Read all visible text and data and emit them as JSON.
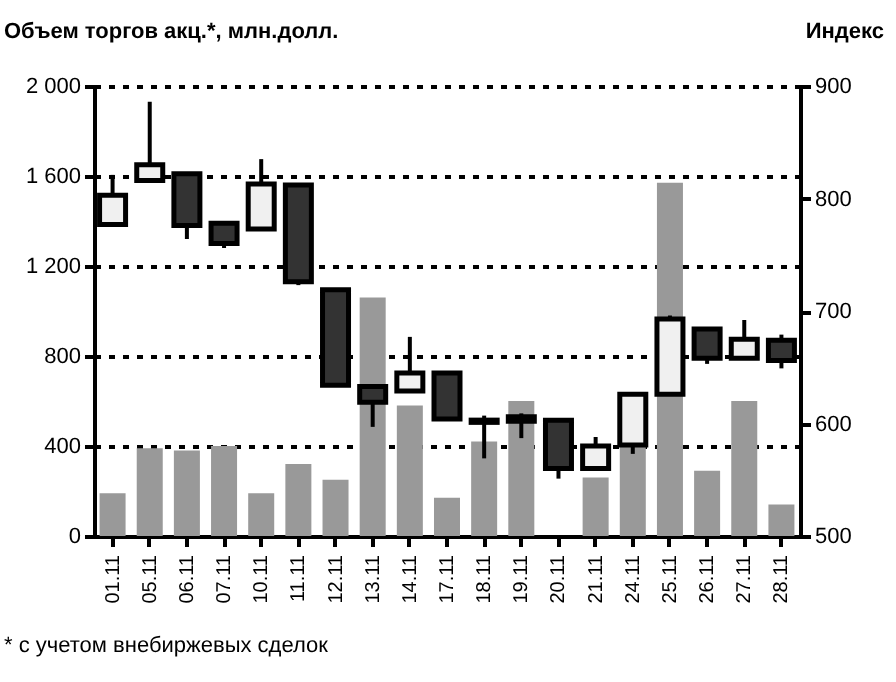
{
  "chart_data": {
    "type": "bar",
    "ylabel": "Объем торгов акц.*, млн.долл.",
    "y2label": "Индекс",
    "annotations": [
      "* с учетом внебиржевых сделок"
    ],
    "categories": [
      "01.11",
      "05.11",
      "06.11",
      "07.11",
      "10.11",
      "11.11",
      "12.11",
      "13.11",
      "14.11",
      "17.11",
      "18.11",
      "19.11",
      "20.11",
      "21.11",
      "24.11",
      "25.11",
      "26.11",
      "27.11",
      "28.11"
    ],
    "series": [
      {
        "color": "#999999",
        "values": [
          190,
          390,
          380,
          400,
          190,
          320,
          250,
          1060,
          580,
          170,
          420,
          600,
          null,
          260,
          400,
          1570,
          290,
          600,
          140
        ]
      },
      {
        "type": "candlestick",
        "axis": "y2",
        "colors": [
          "#f0f0f0",
          "#f0f0f0",
          "#333333",
          "#333333",
          "#f0f0f0",
          "#333333",
          "#333333",
          "#333333",
          "#f0f0f0",
          "#333333",
          "#333333",
          "#333333",
          "#333333",
          "#f0f0f0",
          "#f0f0f0",
          "#f0f0f0",
          "#333333",
          "#f0f0f0",
          "#333333"
        ],
        "ohlc": [
          [
            777,
            821,
            777,
            803
          ],
          [
            816,
            886,
            816,
            830
          ],
          [
            822,
            822,
            764,
            776
          ],
          [
            778,
            778,
            756,
            760
          ],
          [
            773,
            835,
            773,
            813
          ],
          [
            812,
            812,
            723,
            726
          ],
          [
            719,
            719,
            634,
            634
          ],
          [
            633,
            633,
            597,
            619
          ],
          [
            629,
            677,
            629,
            645
          ],
          [
            645,
            645,
            604,
            604
          ],
          [
            603,
            607,
            569,
            601
          ],
          [
            606,
            609,
            587,
            602
          ],
          [
            603,
            603,
            551,
            560
          ],
          [
            560,
            588,
            560,
            580
          ],
          [
            581,
            626,
            573,
            626
          ],
          [
            626,
            696,
            626,
            693
          ],
          [
            684,
            684,
            653,
            658
          ],
          [
            658,
            692,
            658,
            675
          ],
          [
            674,
            679,
            649,
            656
          ]
        ]
      }
    ],
    "ylim": [
      0,
      2000
    ],
    "yticks": [
      0,
      400,
      800,
      {
        "value": 1200,
        "label": "1 200"
      },
      {
        "value": 1600,
        "label": "1 600"
      },
      {
        "value": 2000,
        "label": "2 000"
      }
    ],
    "y2lim": [
      500,
      900
    ],
    "y2ticks": [
      500,
      600,
      700,
      800,
      900
    ],
    "grid": "y"
  }
}
